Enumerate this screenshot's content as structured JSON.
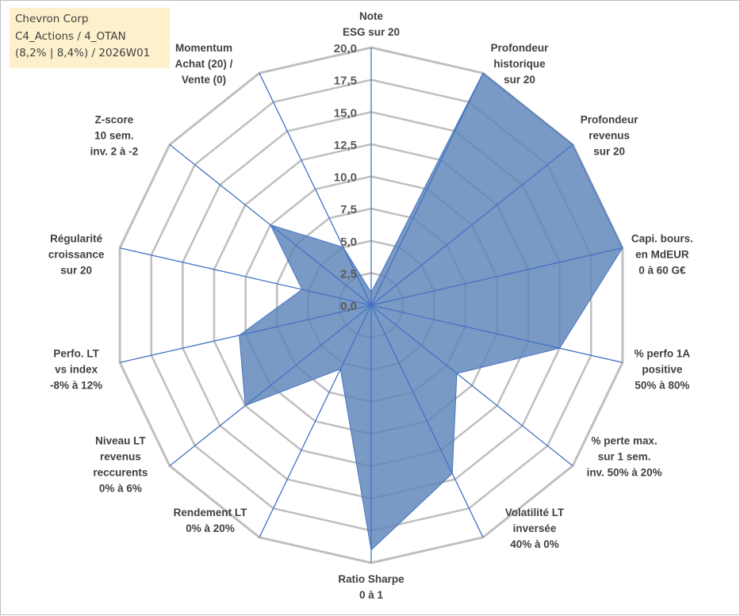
{
  "info_box": {
    "line1": "Chevron Corp",
    "line2": "C4_Actions / 4_OTAN",
    "line3": "(8,2% | 8,4%) / 2026W01"
  },
  "colors": {
    "fill": "#5b84b8",
    "stroke": "#4472c4",
    "grid": "#bfbfbf",
    "info_bg": "#fdf0cc"
  },
  "chart_data": {
    "type": "radar",
    "title": "",
    "rmax": 20,
    "ticks": [
      "0,0",
      "2,5",
      "5,0",
      "7,5",
      "10,0",
      "12,5",
      "15,0",
      "17,5",
      "20,0"
    ],
    "tick_values": [
      0,
      2.5,
      5,
      7.5,
      10,
      12.5,
      15,
      17.5,
      20
    ],
    "axes": [
      {
        "label": [
          "Note",
          "ESG sur 20"
        ],
        "value": 1.0
      },
      {
        "label": [
          "Profondeur",
          "historique",
          "sur 20"
        ],
        "value": 20.0
      },
      {
        "label": [
          "Profondeur",
          "revenus",
          "sur 20"
        ],
        "value": 20.0
      },
      {
        "label": [
          "Capi. bours.",
          "en MdEUR",
          "0 à 60 G€"
        ],
        "value": 20.0
      },
      {
        "label": [
          "% perfo 1A",
          "positive",
          "50% à 80%"
        ],
        "value": 15.0
      },
      {
        "label": [
          "% perte max.",
          "sur 1 sem.",
          "inv. 50% à 20%"
        ],
        "value": 8.5
      },
      {
        "label": [
          "Volatilité LT",
          "inversée",
          "40% à 0%"
        ],
        "value": 14.5
      },
      {
        "label": [
          "Ratio Sharpe",
          "0 à 1"
        ],
        "value": 19.0
      },
      {
        "label": [
          "Rendement LT",
          "0% à 20%"
        ],
        "value": 5.5
      },
      {
        "label": [
          "Niveau LT",
          "revenus",
          "reccurents",
          "0% à 6%"
        ],
        "value": 12.5
      },
      {
        "label": [
          "Perfo. LT",
          "vs index",
          "-8% à 12%"
        ],
        "value": 10.5
      },
      {
        "label": [
          "Régularité",
          "croissance",
          "sur 20"
        ],
        "value": 5.5
      },
      {
        "label": [
          "Z-score",
          "10 sem.",
          "inv. 2 à -2"
        ],
        "value": 10.0
      },
      {
        "label": [
          "Momentum",
          "Achat (20) /",
          "Vente (0)"
        ],
        "value": 5.0
      }
    ]
  }
}
